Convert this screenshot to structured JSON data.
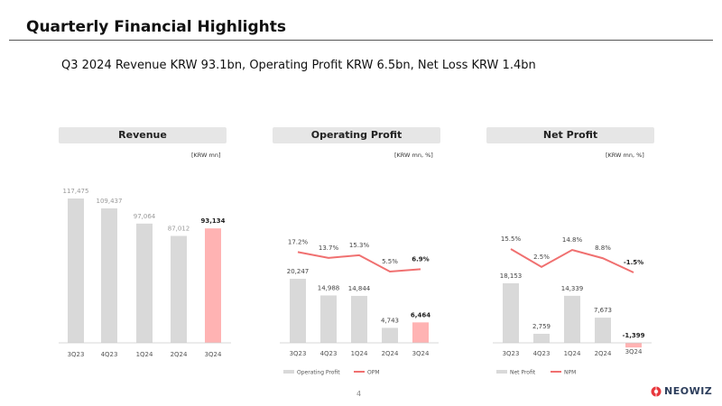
{
  "page": {
    "title": "Quarterly Financial Highlights",
    "subtitle": "Q3 2024 Revenue KRW 93.1bn, Operating Profit KRW 6.5bn, Net Loss KRW 1.4bn",
    "page_number": "4",
    "logo_text": "NEOWIZ"
  },
  "colors": {
    "bar_gray": "#d9d9d9",
    "bar_highlight": "#ffb3b3",
    "line_red": "#f07070",
    "header_bg": "#e6e6e6"
  },
  "chart_data": [
    {
      "type": "bar",
      "title": "Revenue",
      "unit": "[KRW mn]",
      "categories": [
        "3Q23",
        "4Q23",
        "1Q24",
        "2Q24",
        "3Q24"
      ],
      "values": [
        117475,
        109437,
        97064,
        87012,
        93134
      ],
      "labels": [
        "117,475",
        "109,437",
        "97,064",
        "87,012",
        "93,134"
      ],
      "highlight_index": 4
    },
    {
      "type": "bar+line",
      "title": "Operating Profit",
      "unit": "[KRW mn, %]",
      "categories": [
        "3Q23",
        "4Q23",
        "1Q24",
        "2Q24",
        "3Q24"
      ],
      "series": [
        {
          "name": "Operating Profit",
          "type": "bar",
          "values": [
            20247,
            14988,
            14844,
            4743,
            6464
          ],
          "labels": [
            "20,247",
            "14,988",
            "14,844",
            "4,743",
            "6,464"
          ]
        },
        {
          "name": "OPM",
          "type": "line",
          "values": [
            17.2,
            13.7,
            15.3,
            5.5,
            6.9
          ],
          "labels": [
            "17.2%",
            "13.7%",
            "15.3%",
            "5.5%",
            "6.9%"
          ]
        }
      ],
      "highlight_index": 4,
      "legend": [
        "Operating Profit",
        "OPM"
      ]
    },
    {
      "type": "bar+line",
      "title": "Net Profit",
      "unit": "[KRW mn, %]",
      "categories": [
        "3Q23",
        "4Q23",
        "1Q24",
        "2Q24",
        "3Q24"
      ],
      "series": [
        {
          "name": "Net Profit",
          "type": "bar",
          "values": [
            18153,
            2759,
            14339,
            7673,
            -1399
          ],
          "labels": [
            "18,153",
            "2,759",
            "14,339",
            "7,673",
            "-1,399"
          ]
        },
        {
          "name": "NPM",
          "type": "line",
          "values": [
            15.5,
            2.5,
            14.8,
            8.8,
            -1.5
          ],
          "labels": [
            "15.5%",
            "2.5%",
            "14.8%",
            "8.8%",
            "-1.5%"
          ]
        }
      ],
      "highlight_index": 4,
      "legend": [
        "Net Profit",
        "NPM"
      ]
    }
  ]
}
